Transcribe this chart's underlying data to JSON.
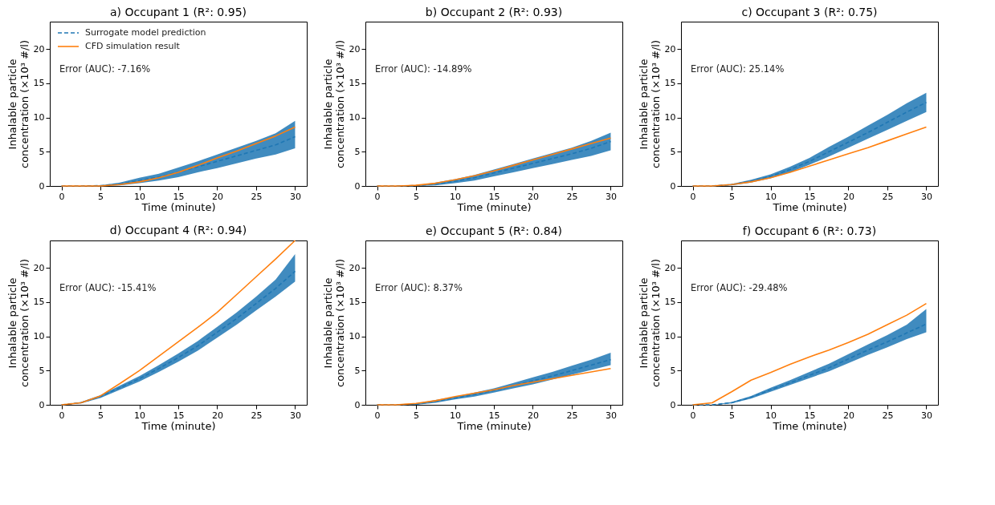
{
  "chart_data": [
    {
      "type": "line",
      "title": "a) Occupant 1 (R²: 0.95)",
      "xlabel": "Time (minute)",
      "ylabel": "Inhalable particle concentration (×10³ #/l)",
      "annotations": [
        "Error (AUC): -7.16%"
      ],
      "legend": "top left",
      "grid": false,
      "xlim": [
        -1.5,
        31.5
      ],
      "ylim": [
        0,
        24
      ],
      "xticks": [
        0,
        5,
        10,
        15,
        20,
        25,
        30
      ],
      "yticks": [
        0,
        5,
        10,
        15,
        20
      ],
      "x": [
        0,
        2.5,
        5,
        7.5,
        10,
        12.5,
        15,
        17.5,
        20,
        22.5,
        25,
        27.5,
        30
      ],
      "series": [
        {
          "name": "Surrogate model prediction",
          "color": "#1f77b4",
          "line_style": "dashed",
          "values": [
            0,
            0,
            0.05,
            0.3,
            0.8,
            1.3,
            2.0,
            2.8,
            3.6,
            4.4,
            5.2,
            6.0,
            7.2
          ],
          "lower": [
            0,
            0,
            0,
            0.1,
            0.4,
            0.8,
            1.3,
            2.0,
            2.6,
            3.3,
            4.0,
            4.6,
            5.5
          ],
          "upper": [
            0,
            0,
            0.1,
            0.5,
            1.2,
            1.8,
            2.7,
            3.6,
            4.6,
            5.6,
            6.6,
            7.7,
            9.5
          ]
        },
        {
          "name": "CFD simulation result",
          "color": "#ff7f0e",
          "line_style": "solid",
          "values": [
            0,
            0,
            0,
            0.2,
            0.6,
            1.2,
            2.0,
            3.0,
            4.1,
            5.1,
            6.2,
            7.3,
            8.6
          ]
        }
      ]
    },
    {
      "type": "line",
      "title": "b) Occupant 2 (R²: 0.93)",
      "xlabel": "Time (minute)",
      "ylabel": "Inhalable particle concentration (×10³ #/l)",
      "annotations": [
        "Error (AUC): -14.89%"
      ],
      "grid": false,
      "xlim": [
        -1.5,
        31.5
      ],
      "ylim": [
        0,
        24
      ],
      "xticks": [
        0,
        5,
        10,
        15,
        20,
        25,
        30
      ],
      "yticks": [
        0,
        5,
        10,
        15,
        20
      ],
      "x": [
        0,
        2.5,
        5,
        7.5,
        10,
        12.5,
        15,
        17.5,
        20,
        22.5,
        25,
        27.5,
        30
      ],
      "series": [
        {
          "color": "#1f77b4",
          "line_style": "dashed",
          "values": [
            0,
            0,
            0.05,
            0.3,
            0.7,
            1.2,
            1.9,
            2.6,
            3.3,
            4.0,
            4.7,
            5.5,
            6.5
          ],
          "lower": [
            0,
            0,
            0,
            0.1,
            0.4,
            0.8,
            1.4,
            2.0,
            2.6,
            3.2,
            3.8,
            4.4,
            5.2
          ],
          "upper": [
            0,
            0,
            0.1,
            0.5,
            1.0,
            1.6,
            2.4,
            3.2,
            4.0,
            4.8,
            5.6,
            6.6,
            7.8
          ]
        },
        {
          "color": "#ff7f0e",
          "line_style": "solid",
          "values": [
            0,
            0,
            0.1,
            0.4,
            0.9,
            1.5,
            2.2,
            3.0,
            3.8,
            4.6,
            5.4,
            6.2,
            7.0
          ]
        }
      ]
    },
    {
      "type": "line",
      "title": "c) Occupant 3 (R²: 0.75)",
      "xlabel": "Time (minute)",
      "ylabel": "Inhalable particle concentration (×10³ #/l)",
      "annotations": [
        "Error (AUC): 25.14%"
      ],
      "grid": false,
      "xlim": [
        -1.5,
        31.5
      ],
      "ylim": [
        0,
        24
      ],
      "xticks": [
        0,
        5,
        10,
        15,
        20,
        25,
        30
      ],
      "yticks": [
        0,
        5,
        10,
        15,
        20
      ],
      "x": [
        0,
        2.5,
        5,
        7.5,
        10,
        12.5,
        15,
        17.5,
        20,
        22.5,
        25,
        27.5,
        30
      ],
      "series": [
        {
          "color": "#1f77b4",
          "line_style": "dashed",
          "values": [
            0,
            0,
            0.2,
            0.7,
            1.4,
            2.4,
            3.6,
            5.0,
            6.4,
            7.8,
            9.3,
            10.8,
            12.2
          ],
          "lower": [
            0,
            0,
            0.1,
            0.5,
            1.1,
            2.0,
            3.1,
            4.3,
            5.6,
            6.9,
            8.2,
            9.5,
            10.8
          ],
          "upper": [
            0,
            0,
            0.3,
            0.9,
            1.7,
            2.8,
            4.1,
            5.7,
            7.2,
            8.8,
            10.4,
            12.1,
            13.6
          ]
        },
        {
          "color": "#ff7f0e",
          "line_style": "solid",
          "values": [
            0,
            0,
            0.2,
            0.6,
            1.2,
            2.0,
            2.9,
            3.8,
            4.7,
            5.6,
            6.6,
            7.6,
            8.6
          ]
        }
      ]
    },
    {
      "type": "line",
      "title": "d) Occupant 4 (R²: 0.94)",
      "xlabel": "Time (minute)",
      "ylabel": "Inhalable particle concentration (×10³ #/l)",
      "annotations": [
        "Error (AUC): -15.41%"
      ],
      "grid": false,
      "xlim": [
        -1.5,
        31.5
      ],
      "ylim": [
        0,
        24
      ],
      "xticks": [
        0,
        5,
        10,
        15,
        20,
        25,
        30
      ],
      "yticks": [
        0,
        5,
        10,
        15,
        20
      ],
      "x": [
        0,
        2.5,
        5,
        7.5,
        10,
        12.5,
        15,
        17.5,
        20,
        22.5,
        25,
        27.5,
        30
      ],
      "series": [
        {
          "color": "#1f77b4",
          "line_style": "dashed",
          "values": [
            0,
            0.3,
            1.2,
            2.5,
            3.8,
            5.3,
            6.9,
            8.6,
            10.6,
            12.6,
            14.8,
            17.0,
            19.5
          ],
          "lower": [
            0,
            0.2,
            1.0,
            2.2,
            3.4,
            4.8,
            6.3,
            7.9,
            9.8,
            11.7,
            13.8,
            15.8,
            18.0
          ],
          "upper": [
            0,
            0.4,
            1.4,
            2.8,
            4.2,
            5.8,
            7.5,
            9.3,
            11.4,
            13.5,
            15.8,
            18.3,
            22.0
          ]
        },
        {
          "color": "#ff7f0e",
          "line_style": "solid",
          "values": [
            0,
            0.3,
            1.3,
            3.1,
            5.0,
            7.1,
            9.2,
            11.3,
            13.5,
            16.1,
            18.7,
            21.3,
            24
          ]
        }
      ]
    },
    {
      "type": "line",
      "title": "e) Occupant 5 (R²: 0.84)",
      "xlabel": "Time (minute)",
      "ylabel": "Inhalable particle concentration (×10³ #/l)",
      "annotations": [
        "Error (AUC): 8.37%"
      ],
      "grid": false,
      "xlim": [
        -1.5,
        31.5
      ],
      "ylim": [
        0,
        24
      ],
      "xticks": [
        0,
        5,
        10,
        15,
        20,
        25,
        30
      ],
      "yticks": [
        0,
        5,
        10,
        15,
        20
      ],
      "x": [
        0,
        2.5,
        5,
        7.5,
        10,
        12.5,
        15,
        17.5,
        20,
        22.5,
        25,
        27.5,
        30
      ],
      "series": [
        {
          "color": "#1f77b4",
          "line_style": "dashed",
          "values": [
            0,
            0,
            0.1,
            0.5,
            1.0,
            1.5,
            2.1,
            2.8,
            3.5,
            4.2,
            5.0,
            5.8,
            6.6
          ],
          "lower": [
            0,
            0,
            0,
            0.3,
            0.8,
            1.2,
            1.8,
            2.4,
            3.0,
            3.7,
            4.4,
            5.1,
            5.8
          ],
          "upper": [
            0,
            0,
            0.2,
            0.7,
            1.2,
            1.8,
            2.4,
            3.2,
            4.0,
            4.8,
            5.7,
            6.6,
            7.6
          ]
        },
        {
          "color": "#ff7f0e",
          "line_style": "solid",
          "values": [
            0,
            0,
            0.2,
            0.6,
            1.2,
            1.7,
            2.2,
            2.8,
            3.3,
            3.8,
            4.3,
            4.8,
            5.3
          ]
        }
      ]
    },
    {
      "type": "line",
      "title": "f) Occupant 6 (R²: 0.73)",
      "xlabel": "Time (minute)",
      "ylabel": "Inhalable particle concentration (×10³ #/l)",
      "annotations": [
        "Error (AUC): -29.48%"
      ],
      "grid": false,
      "xlim": [
        -1.5,
        31.5
      ],
      "ylim": [
        0,
        24
      ],
      "xticks": [
        0,
        5,
        10,
        15,
        20,
        25,
        30
      ],
      "yticks": [
        0,
        5,
        10,
        15,
        20
      ],
      "x": [
        0,
        2.5,
        5,
        7.5,
        10,
        12.5,
        15,
        17.5,
        20,
        22.5,
        25,
        27.5,
        30
      ],
      "series": [
        {
          "color": "#1f77b4",
          "line_style": "dashed",
          "values": [
            0,
            0,
            0.3,
            1.1,
            2.2,
            3.2,
            4.3,
            5.4,
            6.7,
            8.0,
            9.2,
            10.5,
            11.8
          ],
          "lower": [
            0,
            0,
            0.2,
            0.9,
            1.9,
            2.9,
            3.9,
            4.9,
            6.1,
            7.3,
            8.4,
            9.6,
            10.6
          ],
          "upper": [
            0,
            0,
            0.4,
            1.3,
            2.5,
            3.6,
            4.8,
            6.0,
            7.4,
            8.8,
            10.2,
            11.7,
            14.0
          ]
        },
        {
          "color": "#ff7f0e",
          "line_style": "solid",
          "values": [
            0,
            0.3,
            1.9,
            3.6,
            4.7,
            5.9,
            7.0,
            8.0,
            9.1,
            10.3,
            11.7,
            13.1,
            14.8
          ]
        }
      ]
    }
  ]
}
